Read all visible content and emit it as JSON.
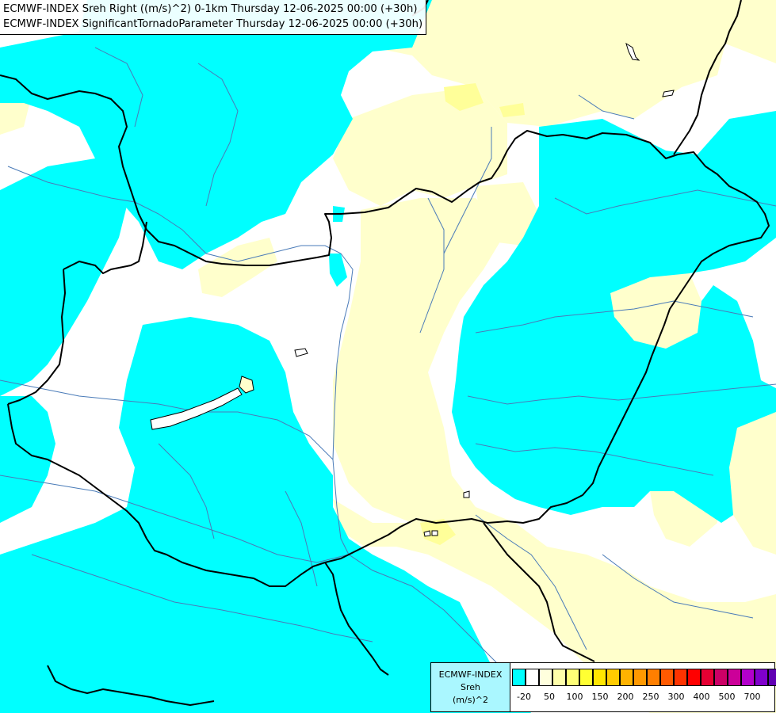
{
  "title_lines": [
    "ECMWF-INDEX Sreh Right ((m/s)^2) 0-1km Thursday 12-06-2025 00:00 (+30h)",
    "ECMWF-INDEX SignificantTornadoParameter Thursday 12-06-2025 00:00 (+30h)"
  ],
  "colors": {
    "background": "#ffffff",
    "cyan_fill": "#00ffff",
    "light_yellow_fill": "#ffffcc",
    "pale_yellow_fill": "#ffff99",
    "yellow_fill": "#ffff33",
    "rivers": "#4a7bb8",
    "borders": "#000000"
  },
  "legend": {
    "name": "ECMWF-INDEX",
    "variable": "Sreh",
    "unit": "(m/s)^2",
    "swatch_colors": [
      "#00ffff",
      "#ffffff",
      "#ffffdd",
      "#ffffaa",
      "#ffff77",
      "#ffff33",
      "#ffe600",
      "#ffcc00",
      "#ffb300",
      "#ff9900",
      "#ff7f00",
      "#ff5a00",
      "#ff3300",
      "#ff0000",
      "#e60033",
      "#cc0066",
      "#cc0099",
      "#b300cc",
      "#8000cc",
      "#6000b3",
      "#400099",
      "#200080"
    ],
    "tick_labels": [
      "-20",
      "50",
      "100",
      "150",
      "200",
      "250",
      "300",
      "400",
      "500",
      "700"
    ]
  }
}
